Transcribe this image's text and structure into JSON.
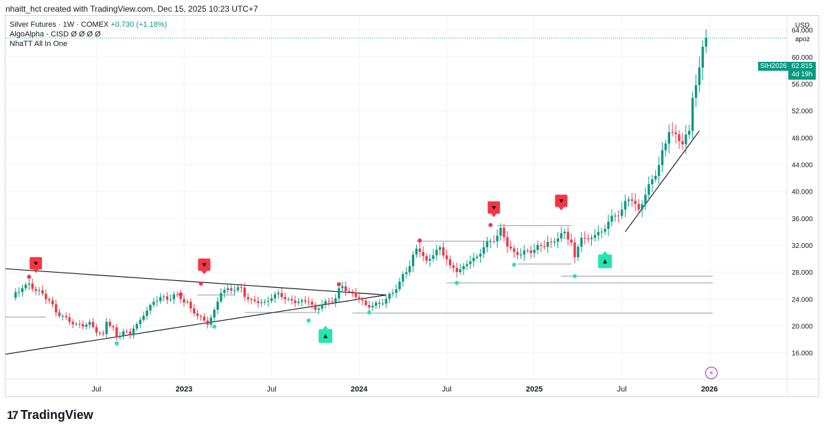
{
  "header": {
    "text": "nhaitt_hct created with TradingView.com, Dec 15, 2025 10:23 UTC+7"
  },
  "legend": {
    "symbol_line": "Silver Futures · 1W · COMEX",
    "change": "+0.730 (+1.18%)",
    "indicator1": "AlgoAlpha - CISD  Ø  Ø  Ø  Ø",
    "indicator2": "NhaTT All In One"
  },
  "price_scale": {
    "currency": "USD",
    "mode": "apoz"
  },
  "last_price": {
    "ticker": "SIH2026",
    "value": "62.815",
    "countdown": "4d 19h"
  },
  "brand": {
    "name": "TradingView",
    "logo_text": "17"
  },
  "colors": {
    "up": "#089981",
    "down": "#f23645",
    "teal": "#22e6b0",
    "gridline": "#f0f3fa",
    "text": "#131722"
  },
  "chart_data": {
    "type": "candlestick",
    "title": "Silver Futures · 1W · COMEX",
    "ylim": [
      12.5,
      66
    ],
    "y_ticks": [
      16,
      20,
      24,
      28,
      32,
      36,
      40,
      44,
      48,
      52,
      56,
      60,
      64
    ],
    "y_tick_labels": [
      "16.000",
      "20.000",
      "24.000",
      "28.000",
      "32.000",
      "36.000",
      "40.000",
      "44.000",
      "48.000",
      "52.000",
      "56.000",
      "60.000",
      "64.000"
    ],
    "x_ticks": [
      {
        "label": "Jul",
        "week": 25,
        "bold": false
      },
      {
        "label": "2023",
        "week": 51,
        "bold": true
      },
      {
        "label": "Jul",
        "week": 77,
        "bold": false
      },
      {
        "label": "2024",
        "week": 103,
        "bold": true
      },
      {
        "label": "Jul",
        "week": 129,
        "bold": false
      },
      {
        "label": "2025",
        "week": 155,
        "bold": true
      },
      {
        "label": "Jul",
        "week": 181,
        "bold": false
      },
      {
        "label": "2026",
        "week": 207,
        "bold": true
      }
    ],
    "weeks_range": [
      -2,
      230
    ],
    "anchors": [
      [
        0,
        24.2
      ],
      [
        3,
        25.6
      ],
      [
        5,
        26.3
      ],
      [
        7,
        25.2
      ],
      [
        9,
        24.8
      ],
      [
        11,
        23.8
      ],
      [
        13,
        22.0
      ],
      [
        15,
        21.5
      ],
      [
        17,
        20.6
      ],
      [
        19,
        20.3
      ],
      [
        21,
        19.9
      ],
      [
        23,
        20.6
      ],
      [
        25,
        19.0
      ],
      [
        27,
        18.8
      ],
      [
        28,
        20.6
      ],
      [
        30,
        19.8
      ],
      [
        31,
        18.3
      ],
      [
        33,
        19.2
      ],
      [
        35,
        18.6
      ],
      [
        36,
        19.6
      ],
      [
        38,
        20.9
      ],
      [
        40,
        22.3
      ],
      [
        42,
        23.6
      ],
      [
        44,
        24.3
      ],
      [
        46,
        23.9
      ],
      [
        48,
        24.7
      ],
      [
        50,
        24.0
      ],
      [
        52,
        23.6
      ],
      [
        53,
        22.6
      ],
      [
        55,
        21.5
      ],
      [
        57,
        20.8
      ],
      [
        58,
        20.2
      ],
      [
        60,
        22.4
      ],
      [
        62,
        24.9
      ],
      [
        64,
        25.6
      ],
      [
        66,
        25.3
      ],
      [
        68,
        25.7
      ],
      [
        69,
        24.3
      ],
      [
        71,
        23.9
      ],
      [
        73,
        23.4
      ],
      [
        75,
        23.6
      ],
      [
        77,
        24.1
      ],
      [
        79,
        24.9
      ],
      [
        80,
        24.3
      ],
      [
        82,
        24.0
      ],
      [
        84,
        23.4
      ],
      [
        86,
        23.8
      ],
      [
        88,
        23.6
      ],
      [
        90,
        22.4
      ],
      [
        92,
        23.2
      ],
      [
        94,
        23.6
      ],
      [
        96,
        24.1
      ],
      [
        97,
        25.6
      ],
      [
        98,
        25.9
      ],
      [
        100,
        25.1
      ],
      [
        102,
        24.3
      ],
      [
        103,
        23.9
      ],
      [
        105,
        23.1
      ],
      [
        107,
        23.0
      ],
      [
        109,
        23.3
      ],
      [
        111,
        24.0
      ],
      [
        113,
        24.9
      ],
      [
        115,
        26.6
      ],
      [
        116,
        27.7
      ],
      [
        118,
        28.9
      ],
      [
        120,
        31.5
      ],
      [
        121,
        31.0
      ],
      [
        123,
        29.7
      ],
      [
        125,
        30.5
      ],
      [
        127,
        31.7
      ],
      [
        129,
        29.9
      ],
      [
        130,
        29.0
      ],
      [
        132,
        28.0
      ],
      [
        134,
        28.9
      ],
      [
        136,
        29.6
      ],
      [
        138,
        30.3
      ],
      [
        140,
        31.7
      ],
      [
        142,
        32.6
      ],
      [
        144,
        33.4
      ],
      [
        145,
        34.6
      ],
      [
        147,
        31.8
      ],
      [
        149,
        31.0
      ],
      [
        151,
        30.6
      ],
      [
        153,
        31.2
      ],
      [
        155,
        31.3
      ],
      [
        157,
        31.9
      ],
      [
        159,
        32.5
      ],
      [
        160,
        32.4
      ],
      [
        162,
        33.0
      ],
      [
        164,
        34.0
      ],
      [
        166,
        32.4
      ],
      [
        167,
        30.2
      ],
      [
        169,
        33.1
      ],
      [
        171,
        32.9
      ],
      [
        173,
        33.5
      ],
      [
        175,
        34.0
      ],
      [
        177,
        35.5
      ],
      [
        179,
        36.4
      ],
      [
        181,
        37.3
      ],
      [
        183,
        38.8
      ],
      [
        184,
        38.6
      ],
      [
        186,
        37.3
      ],
      [
        188,
        39.5
      ],
      [
        190,
        41.8
      ],
      [
        192,
        43.9
      ],
      [
        194,
        47.1
      ],
      [
        195,
        48.8
      ],
      [
        197,
        48.5
      ],
      [
        199,
        47.0
      ],
      [
        201,
        49.0
      ],
      [
        202,
        53.9
      ],
      [
        204,
        58.4
      ],
      [
        205,
        61.5
      ],
      [
        206,
        62.8
      ]
    ],
    "trend_lines": [
      {
        "name": "triangle-upper",
        "from": [
          -2,
          28.5
        ],
        "to": [
          111,
          24.6
        ]
      },
      {
        "name": "triangle-lower",
        "from": [
          -2,
          15.8
        ],
        "to": [
          111,
          24.6
        ]
      },
      {
        "name": "rally-trendline",
        "from": [
          182,
          34.0
        ],
        "to": [
          204,
          49.0
        ]
      }
    ],
    "horizontal_lines": [
      {
        "name": "level-21.3",
        "y": 21.3,
        "from": -2,
        "to": 10
      },
      {
        "name": "level-27.4",
        "y": 27.4,
        "from": 163,
        "to": 208
      },
      {
        "name": "level-26.4",
        "y": 26.4,
        "from": 129,
        "to": 208
      },
      {
        "name": "level-21.9",
        "y": 21.9,
        "from": 101,
        "to": 208
      },
      {
        "name": "level-34.9",
        "y": 34.9,
        "from": 144,
        "to": 166
      },
      {
        "name": "level-32.6",
        "y": 32.6,
        "from": 120,
        "to": 142
      },
      {
        "name": "level-29.2",
        "y": 29.2,
        "from": 150,
        "to": 166
      },
      {
        "name": "level-24.6",
        "y": 24.6,
        "from": 55,
        "to": 66
      },
      {
        "name": "level-22.0",
        "y": 22.0,
        "from": 69,
        "to": 91
      }
    ],
    "cisd_markers": [
      {
        "type": "sell",
        "week": 7,
        "y": 29.2
      },
      {
        "type": "sell",
        "week": 57,
        "y": 29.0
      },
      {
        "type": "sell",
        "week": 143,
        "y": 37.5
      },
      {
        "type": "sell",
        "week": 163,
        "y": 38.5
      },
      {
        "type": "buy",
        "week": 93,
        "y": 18.6
      },
      {
        "type": "buy",
        "week": 176,
        "y": 29.7
      }
    ],
    "swing_points": [
      {
        "type": "high",
        "week": 5,
        "y": 27.3
      },
      {
        "type": "high",
        "week": 50,
        "y": 24.7
      },
      {
        "type": "high",
        "week": 56,
        "y": 26.3
      },
      {
        "type": "high",
        "week": 97,
        "y": 26.2
      },
      {
        "type": "high",
        "week": 121,
        "y": 32.7
      },
      {
        "type": "high",
        "week": 142,
        "y": 35.0
      },
      {
        "type": "low",
        "week": 31,
        "y": 17.4
      },
      {
        "type": "low",
        "week": 60,
        "y": 19.9
      },
      {
        "type": "low",
        "week": 88,
        "y": 20.8
      },
      {
        "type": "low",
        "week": 106,
        "y": 22.0
      },
      {
        "type": "low",
        "week": 132,
        "y": 26.4
      },
      {
        "type": "low",
        "week": 149,
        "y": 29.1
      },
      {
        "type": "low",
        "week": 167,
        "y": 27.4
      }
    ]
  }
}
